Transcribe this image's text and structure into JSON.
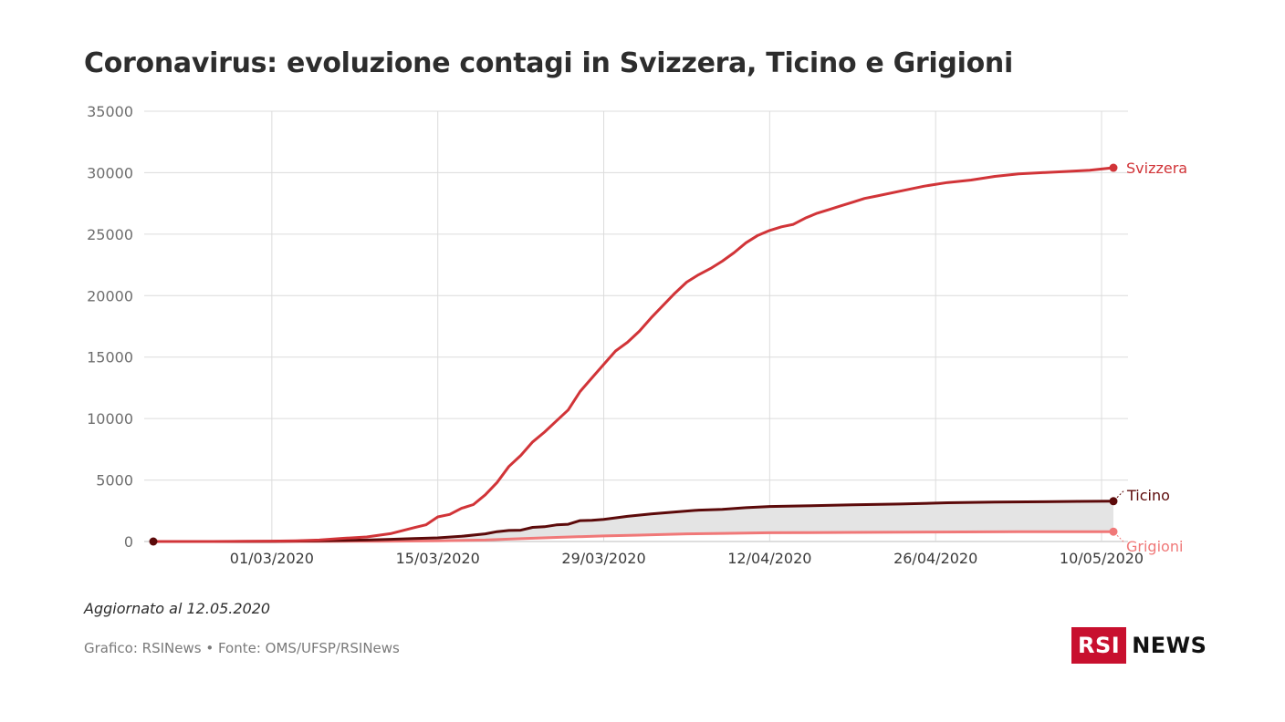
{
  "header": {
    "title": "Coronavirus: evoluzione contagi in Svizzera, Ticino e Grigioni"
  },
  "footer": {
    "updated": "Aggiornato al 12.05.2020",
    "source": "Grafico: RSINews • Fonte: OMS/UFSP/RSINews"
  },
  "logo": {
    "box_text": "RSI",
    "text": "NEWS",
    "color": "#c8102e"
  },
  "chart_data": {
    "type": "line",
    "title": "Coronavirus: evoluzione contagi in Svizzera, Ticino e Grigioni",
    "xlabel": "",
    "ylabel": "",
    "x_range": [
      "2020-02-20",
      "2020-05-11"
    ],
    "ylim": [
      0,
      35000
    ],
    "yticks": [
      0,
      5000,
      10000,
      15000,
      20000,
      25000,
      30000,
      35000
    ],
    "xticks": [
      {
        "date": "2020-03-01",
        "label": "01/03/2020"
      },
      {
        "date": "2020-03-15",
        "label": "15/03/2020"
      },
      {
        "date": "2020-03-29",
        "label": "29/03/2020"
      },
      {
        "date": "2020-04-12",
        "label": "12/04/2020"
      },
      {
        "date": "2020-04-26",
        "label": "26/04/2020"
      },
      {
        "date": "2020-05-10",
        "label": "10/05/2020"
      }
    ],
    "grid": true,
    "legend": "end-of-line labels",
    "series": [
      {
        "name": "Svizzera",
        "color": "#d13438",
        "points": [
          [
            "2020-02-20",
            0
          ],
          [
            "2020-02-25",
            1
          ],
          [
            "2020-02-28",
            15
          ],
          [
            "2020-03-01",
            27
          ],
          [
            "2020-03-03",
            56
          ],
          [
            "2020-03-05",
            120
          ],
          [
            "2020-03-07",
            260
          ],
          [
            "2020-03-09",
            370
          ],
          [
            "2020-03-11",
            640
          ],
          [
            "2020-03-13",
            1130
          ],
          [
            "2020-03-14",
            1360
          ],
          [
            "2020-03-15",
            2000
          ],
          [
            "2020-03-16",
            2200
          ],
          [
            "2020-03-17",
            2700
          ],
          [
            "2020-03-18",
            3000
          ],
          [
            "2020-03-19",
            3800
          ],
          [
            "2020-03-20",
            4800
          ],
          [
            "2020-03-21",
            6100
          ],
          [
            "2020-03-22",
            7000
          ],
          [
            "2020-03-23",
            8100
          ],
          [
            "2020-03-24",
            8900
          ],
          [
            "2020-03-25",
            9800
          ],
          [
            "2020-03-26",
            10700
          ],
          [
            "2020-03-27",
            12200
          ],
          [
            "2020-03-28",
            13300
          ],
          [
            "2020-03-29",
            14400
          ],
          [
            "2020-03-30",
            15500
          ],
          [
            "2020-03-31",
            16200
          ],
          [
            "2020-04-01",
            17100
          ],
          [
            "2020-04-02",
            18200
          ],
          [
            "2020-04-03",
            19200
          ],
          [
            "2020-04-04",
            20200
          ],
          [
            "2020-04-05",
            21100
          ],
          [
            "2020-04-06",
            21700
          ],
          [
            "2020-04-07",
            22200
          ],
          [
            "2020-04-08",
            22800
          ],
          [
            "2020-04-09",
            23500
          ],
          [
            "2020-04-10",
            24300
          ],
          [
            "2020-04-11",
            24900
          ],
          [
            "2020-04-12",
            25300
          ],
          [
            "2020-04-13",
            25600
          ],
          [
            "2020-04-14",
            25800
          ],
          [
            "2020-04-15",
            26300
          ],
          [
            "2020-04-16",
            26700
          ],
          [
            "2020-04-17",
            27000
          ],
          [
            "2020-04-18",
            27300
          ],
          [
            "2020-04-19",
            27600
          ],
          [
            "2020-04-20",
            27900
          ],
          [
            "2020-04-21",
            28100
          ],
          [
            "2020-04-23",
            28500
          ],
          [
            "2020-04-25",
            28900
          ],
          [
            "2020-04-27",
            29200
          ],
          [
            "2020-04-29",
            29400
          ],
          [
            "2020-05-01",
            29700
          ],
          [
            "2020-05-03",
            29900
          ],
          [
            "2020-05-05",
            30000
          ],
          [
            "2020-05-07",
            30100
          ],
          [
            "2020-05-09",
            30200
          ],
          [
            "2020-05-11",
            30400
          ]
        ]
      },
      {
        "name": "Ticino",
        "color": "#5c0a0a",
        "points": [
          [
            "2020-02-20",
            0
          ],
          [
            "2020-02-25",
            1
          ],
          [
            "2020-03-01",
            10
          ],
          [
            "2020-03-05",
            50
          ],
          [
            "2020-03-09",
            120
          ],
          [
            "2020-03-11",
            180
          ],
          [
            "2020-03-13",
            240
          ],
          [
            "2020-03-15",
            300
          ],
          [
            "2020-03-17",
            420
          ],
          [
            "2020-03-19",
            620
          ],
          [
            "2020-03-20",
            800
          ],
          [
            "2020-03-21",
            900
          ],
          [
            "2020-03-22",
            920
          ],
          [
            "2020-03-23",
            1150
          ],
          [
            "2020-03-24",
            1200
          ],
          [
            "2020-03-25",
            1350
          ],
          [
            "2020-03-26",
            1400
          ],
          [
            "2020-03-27",
            1700
          ],
          [
            "2020-03-28",
            1720
          ],
          [
            "2020-03-29",
            1800
          ],
          [
            "2020-03-31",
            2050
          ],
          [
            "2020-04-02",
            2250
          ],
          [
            "2020-04-04",
            2400
          ],
          [
            "2020-04-06",
            2550
          ],
          [
            "2020-04-08",
            2620
          ],
          [
            "2020-04-10",
            2750
          ],
          [
            "2020-04-12",
            2850
          ],
          [
            "2020-04-15",
            2900
          ],
          [
            "2020-04-19",
            2980
          ],
          [
            "2020-04-23",
            3050
          ],
          [
            "2020-04-27",
            3150
          ],
          [
            "2020-05-01",
            3200
          ],
          [
            "2020-05-05",
            3230
          ],
          [
            "2020-05-08",
            3260
          ],
          [
            "2020-05-11",
            3280
          ]
        ]
      },
      {
        "name": "Grigioni",
        "color": "#f07878",
        "points": [
          [
            "2020-02-20",
            0
          ],
          [
            "2020-02-28",
            0
          ],
          [
            "2020-03-05",
            5
          ],
          [
            "2020-03-10",
            20
          ],
          [
            "2020-03-15",
            60
          ],
          [
            "2020-03-19",
            120
          ],
          [
            "2020-03-22",
            230
          ],
          [
            "2020-03-25",
            330
          ],
          [
            "2020-03-29",
            450
          ],
          [
            "2020-04-01",
            520
          ],
          [
            "2020-04-05",
            620
          ],
          [
            "2020-04-08",
            660
          ],
          [
            "2020-04-12",
            710
          ],
          [
            "2020-04-19",
            740
          ],
          [
            "2020-04-26",
            770
          ],
          [
            "2020-05-03",
            790
          ],
          [
            "2020-05-11",
            800
          ]
        ]
      }
    ]
  }
}
